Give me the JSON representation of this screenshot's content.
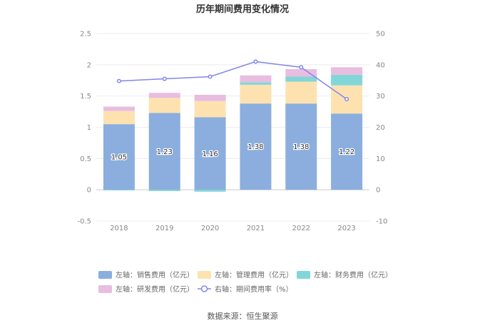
{
  "chart_data": {
    "type": "bar",
    "title": "历年期间费用变化情况",
    "categories": [
      "2018",
      "2019",
      "2020",
      "2021",
      "2022",
      "2023"
    ],
    "left_axis": {
      "min": -0.5,
      "max": 2.5,
      "ticks": [
        "-0.5",
        "0",
        "0.5",
        "1",
        "1.5",
        "2",
        "2.5"
      ]
    },
    "right_axis": {
      "min": -10,
      "max": 50,
      "ticks": [
        "-10",
        "0",
        "10",
        "20",
        "30",
        "40",
        "50"
      ]
    },
    "series": [
      {
        "name": "左轴：销售费用（亿元）",
        "kind": "bar",
        "axis": "left",
        "color": "#8baede",
        "values": [
          1.05,
          1.23,
          1.16,
          1.38,
          1.38,
          1.22
        ],
        "labels": [
          "1.05",
          "1.23",
          "1.16",
          "1.38",
          "1.38",
          "1.22"
        ]
      },
      {
        "name": "左轴：管理费用（亿元）",
        "kind": "bar",
        "axis": "left",
        "color": "#fde2b0",
        "values": [
          0.21,
          0.24,
          0.26,
          0.3,
          0.35,
          0.45
        ]
      },
      {
        "name": "左轴：财务费用（亿元）",
        "kind": "bar",
        "axis": "left",
        "color": "#82d6d8",
        "values": [
          -0.01,
          -0.02,
          -0.03,
          0.04,
          0.08,
          0.17
        ]
      },
      {
        "name": "左轴：研发费用（亿元）",
        "kind": "bar",
        "axis": "left",
        "color": "#e8bde0",
        "values": [
          0.07,
          0.08,
          0.1,
          0.11,
          0.12,
          0.12
        ]
      },
      {
        "name": "右轴：期间费用率（%）",
        "kind": "line",
        "axis": "right",
        "color": "#8187e8",
        "values": [
          34.8,
          35.5,
          36.2,
          41.0,
          39.2,
          29.0
        ]
      }
    ],
    "legend_position": "bottom"
  },
  "source_text": "数据来源：恒生聚源"
}
